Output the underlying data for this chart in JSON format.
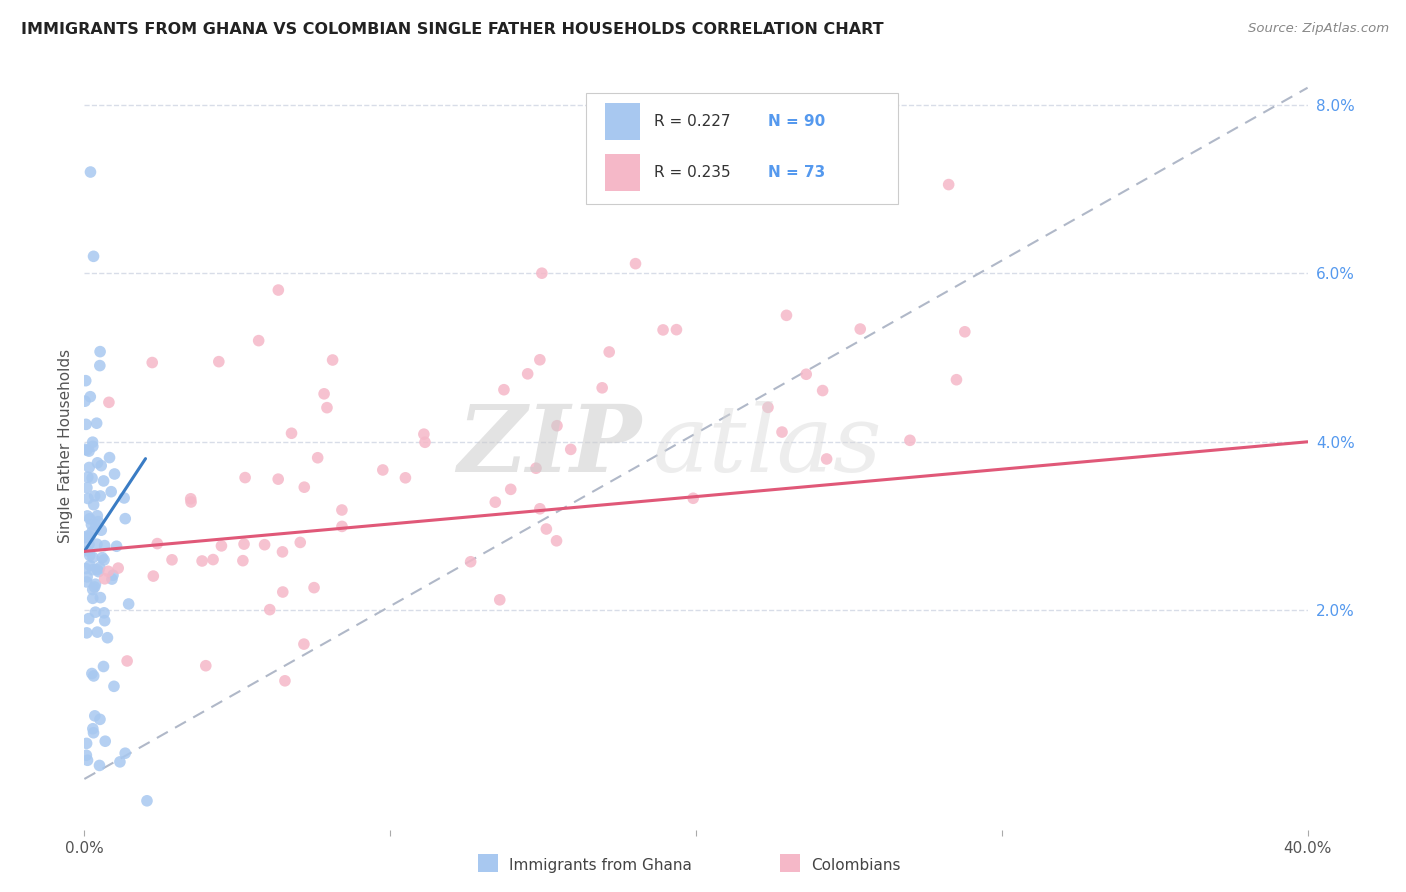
{
  "title": "IMMIGRANTS FROM GHANA VS COLOMBIAN SINGLE FATHER HOUSEHOLDS CORRELATION CHART",
  "source": "Source: ZipAtlas.com",
  "ylabel": "Single Father Households",
  "ghana_color": "#a8c8f0",
  "colombia_color": "#f5b8c8",
  "ghana_trend_color": "#3a7cc4",
  "colombia_trend_color": "#e05878",
  "dashed_line_color": "#b0b8c8",
  "watermark_zip": "ZIP",
  "watermark_atlas": "atlas",
  "legend_label1": "Immigrants from Ghana",
  "legend_label2": "Colombians",
  "xlim": [
    0.0,
    0.4
  ],
  "ylim": [
    -0.006,
    0.085
  ],
  "background_color": "#ffffff",
  "grid_color": "#d8dde8"
}
